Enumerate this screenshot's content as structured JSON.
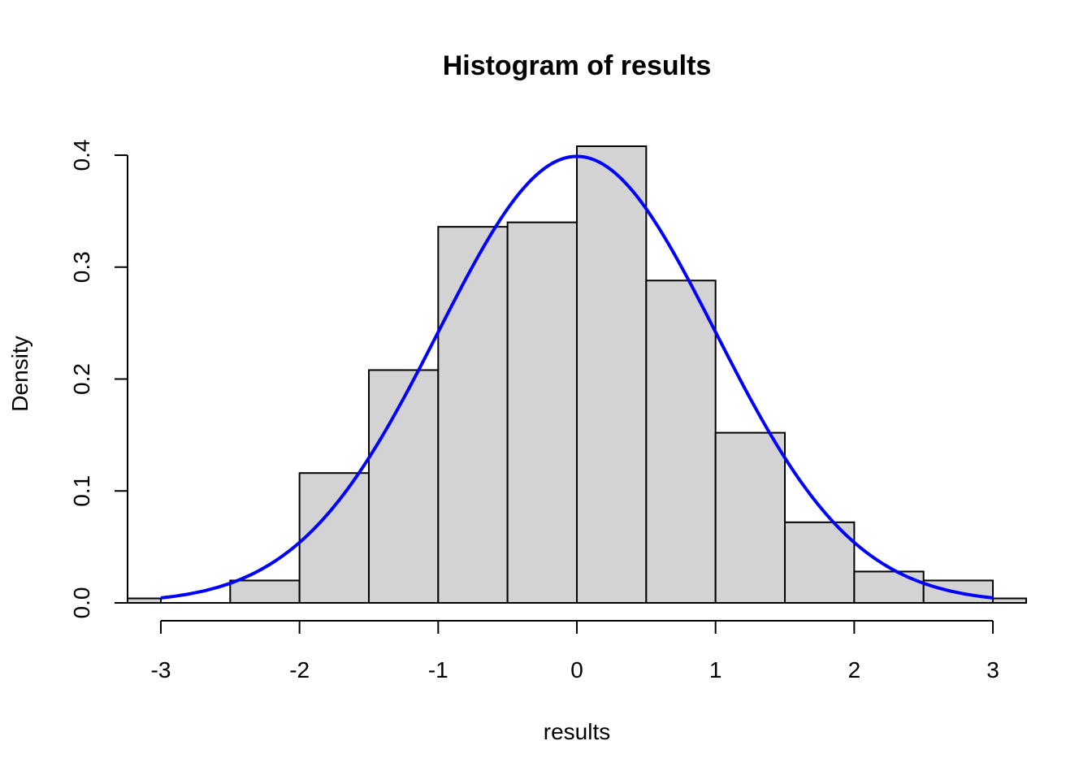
{
  "chart_data": {
    "type": "bar",
    "title": "Histogram of results",
    "xlabel": "results",
    "ylabel": "Density",
    "xlim": [
      -3.24,
      3.24
    ],
    "ylim": [
      0,
      0.4
    ],
    "x_ticks": [
      "-3",
      "-2",
      "-1",
      "0",
      "1",
      "2",
      "3"
    ],
    "y_ticks": [
      "0.0",
      "0.1",
      "0.2",
      "0.3",
      "0.4"
    ],
    "bins": [
      {
        "from": -3.5,
        "to": -3.0,
        "density": 0.004
      },
      {
        "from": -3.0,
        "to": -2.5,
        "density": 0.0
      },
      {
        "from": -2.5,
        "to": -2.0,
        "density": 0.02
      },
      {
        "from": -2.0,
        "to": -1.5,
        "density": 0.116
      },
      {
        "from": -1.5,
        "to": -1.0,
        "density": 0.208
      },
      {
        "from": -1.0,
        "to": -0.5,
        "density": 0.336
      },
      {
        "from": -0.5,
        "to": 0.0,
        "density": 0.34
      },
      {
        "from": 0.0,
        "to": 0.5,
        "density": 0.408
      },
      {
        "from": 0.5,
        "to": 1.0,
        "density": 0.288
      },
      {
        "from": 1.0,
        "to": 1.5,
        "density": 0.152
      },
      {
        "from": 1.5,
        "to": 2.0,
        "density": 0.072
      },
      {
        "from": 2.0,
        "to": 2.5,
        "density": 0.028
      },
      {
        "from": 2.5,
        "to": 3.0,
        "density": 0.02
      },
      {
        "from": 3.0,
        "to": 3.5,
        "density": 0.004
      }
    ],
    "curve": {
      "type": "line",
      "function": "normal density",
      "mean": 0,
      "sd": 1,
      "from": -3,
      "to": 3,
      "color": "#0000ff"
    },
    "bar_fill": "#d3d3d3",
    "grid": false
  }
}
